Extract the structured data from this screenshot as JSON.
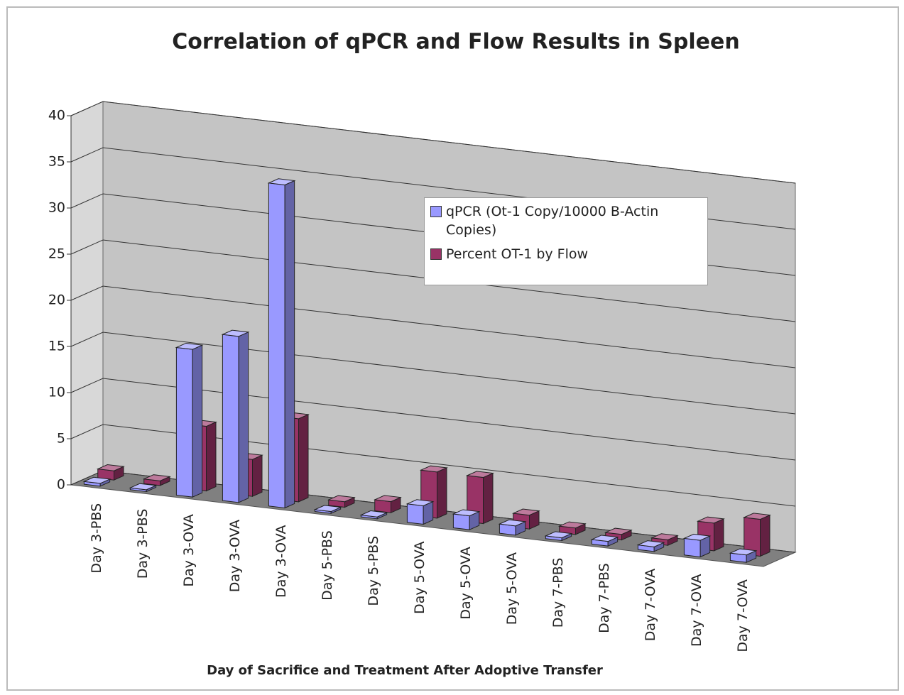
{
  "chart_data": {
    "type": "bar3d",
    "title": "Correlation of qPCR and Flow Results in Spleen",
    "x_label": "Day of Sacrifice and Treatment After Adoptive Transfer",
    "categories": [
      "Day 3-PBS",
      "Day 3-PBS",
      "Day 3-OVA",
      "Day 3-OVA",
      "Day 3-OVA",
      "Day 5-PBS",
      "Day 5-PBS",
      "Day 5-OVA",
      "Day 5-OVA",
      "Day 5-OVA",
      "Day 7-PBS",
      "Day 7-PBS",
      "Day 7-OVA",
      "Day 7-OVA",
      "Day 7-OVA"
    ],
    "series": [
      {
        "name": "qPCR (Ot-1 Copy/10000 B-Actin Copies)",
        "color": "#9999ff",
        "values": [
          0.3,
          0.2,
          16,
          18,
          35,
          0.2,
          0.2,
          2,
          1.5,
          1,
          0.3,
          0.5,
          0.5,
          1.8,
          0.8
        ]
      },
      {
        "name": "Percent OT-1 by Flow",
        "color": "#993366",
        "values": [
          1,
          0.5,
          7,
          4,
          9,
          0.6,
          1.2,
          5,
          5,
          1.5,
          0.7,
          0.6,
          0.6,
          3,
          4
        ]
      }
    ],
    "ylim": [
      0,
      40
    ],
    "yticks": [
      0,
      5,
      10,
      15,
      20,
      25,
      30,
      35,
      40
    ],
    "grid": true
  }
}
